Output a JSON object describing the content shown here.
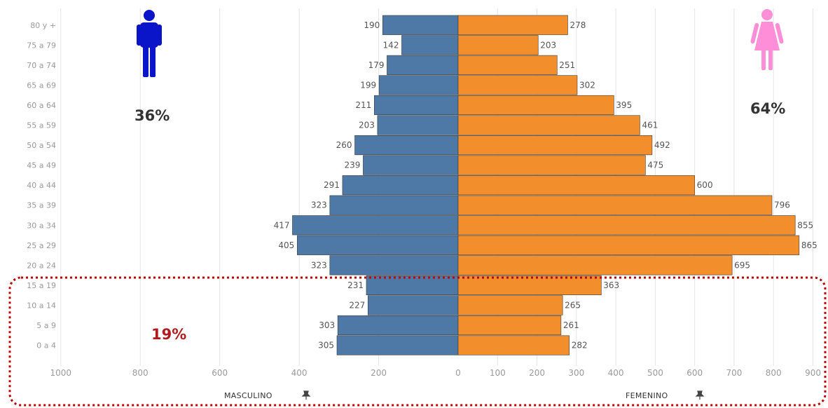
{
  "chart_data": {
    "type": "bar",
    "orientation": "horizontal",
    "categories": [
      "80 y +",
      "75 a 79",
      "70 a 74",
      "65 a 69",
      "60 a 64",
      "55 a 59",
      "50 a 54",
      "45 a 49",
      "40 a 44",
      "35 a 39",
      "30 a 34",
      "25 a 29",
      "20 a 24",
      "15 a 19",
      "10 a 14",
      "5 a 9",
      "0 a 4"
    ],
    "series": [
      {
        "name": "MASCULINO",
        "values": [
          190,
          142,
          179,
          199,
          211,
          203,
          260,
          239,
          291,
          323,
          417,
          405,
          323,
          231,
          227,
          303,
          305
        ]
      },
      {
        "name": "FEMENINO",
        "values": [
          278,
          203,
          251,
          302,
          395,
          461,
          492,
          475,
          600,
          796,
          855,
          865,
          695,
          363,
          265,
          261,
          282
        ]
      }
    ],
    "left_ticks": [
      "1000",
      "800",
      "600",
      "400",
      "200",
      "0"
    ],
    "left_tick_values": [
      1000,
      800,
      600,
      400,
      200,
      0
    ],
    "right_ticks": [
      "100",
      "200",
      "300",
      "400",
      "500",
      "600",
      "700",
      "800",
      "900"
    ],
    "right_tick_values": [
      100,
      200,
      300,
      400,
      500,
      600,
      700,
      800,
      900
    ],
    "xlabel_left": "MASCULINO",
    "xlabel_right": "FEMENINO",
    "grid": true,
    "colors": {
      "masculino": "#4e79a7",
      "femenino": "#f28e2b",
      "highlight": "#c00000",
      "male_icon": "#0a14c8",
      "female_icon": "#ff8ed8"
    },
    "annotations": {
      "male_pct": "36%",
      "female_pct": "64%",
      "highlight_pct": "19%",
      "highlight_rows": [
        "15 a 19",
        "10 a 14",
        "5 a 9",
        "0 a 4"
      ]
    }
  }
}
